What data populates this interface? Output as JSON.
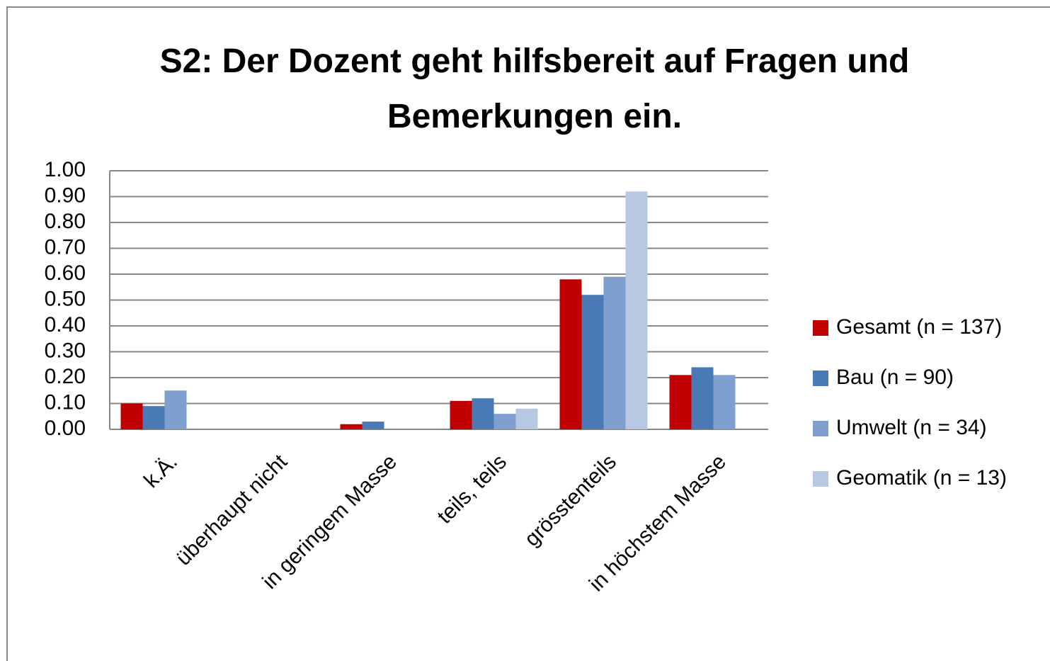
{
  "chart_data": {
    "type": "bar",
    "title": "S2: Der Dozent geht hilfsbereit auf Fragen und Bemerkungen ein.",
    "categories": [
      "k.Ä.",
      "überhaupt nicht",
      "in geringem Masse",
      "teils, teils",
      "grösstenteils",
      "in höchstem Masse"
    ],
    "series": [
      {
        "name": "Gesamt (n = 137)",
        "color": "#c00000",
        "values": [
          0.1,
          0,
          0.02,
          0.11,
          0.58,
          0.21
        ]
      },
      {
        "name": "Bau (n = 90)",
        "color": "#4a7ab5",
        "values": [
          0.09,
          0,
          0.03,
          0.12,
          0.52,
          0.24
        ]
      },
      {
        "name": "Umwelt (n = 34)",
        "color": "#7f9fcf",
        "values": [
          0.15,
          0,
          0,
          0.06,
          0.59,
          0.21
        ]
      },
      {
        "name": "Geomatik (n = 13)",
        "color": "#b9c8e2",
        "values": [
          0,
          0,
          0,
          0.08,
          0.92,
          0
        ]
      }
    ],
    "ylim": [
      0,
      1
    ],
    "yticks": [
      {
        "value": 0,
        "label": "0.00"
      },
      {
        "value": 0.1,
        "label": "0.10"
      },
      {
        "value": 0.2,
        "label": "0.20"
      },
      {
        "value": 0.3,
        "label": "0.30"
      },
      {
        "value": 0.4,
        "label": "0.40"
      },
      {
        "value": 0.5,
        "label": "0.50"
      },
      {
        "value": 0.6,
        "label": "0.60"
      },
      {
        "value": 0.7,
        "label": "0.70"
      },
      {
        "value": 0.8,
        "label": "0.80"
      },
      {
        "value": 0.9,
        "label": "0.90"
      },
      {
        "value": 1,
        "label": "1.00"
      }
    ],
    "grid": true,
    "legend": "right"
  }
}
